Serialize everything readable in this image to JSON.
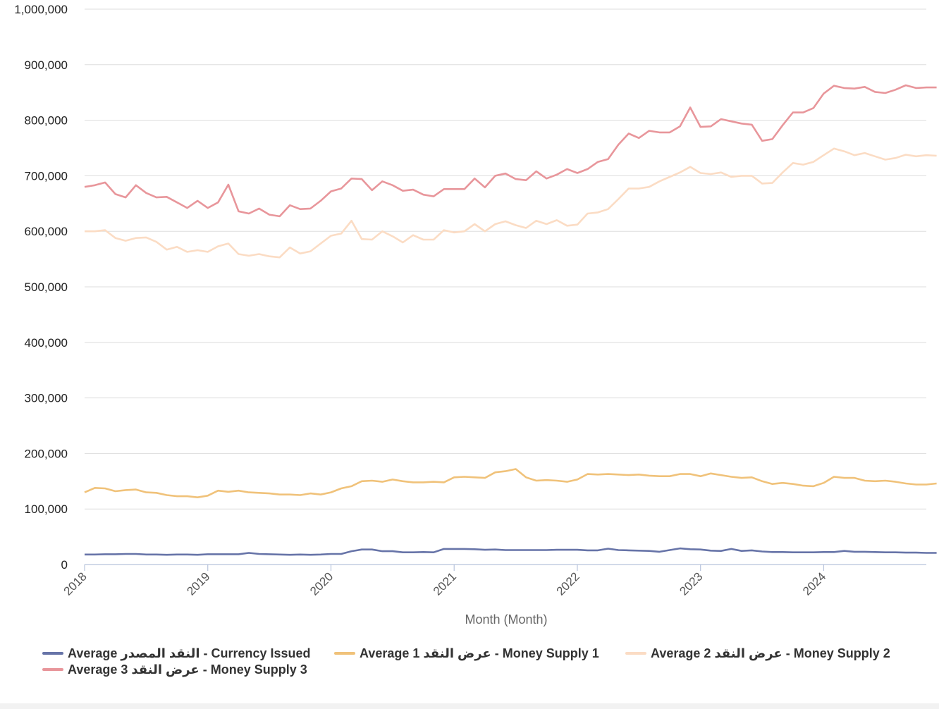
{
  "chart_data": {
    "type": "line",
    "xlabel": "Month (Month)",
    "ylabel": "",
    "ylim": [
      0,
      1000000
    ],
    "yticks": [
      0,
      100000,
      200000,
      300000,
      400000,
      500000,
      600000,
      700000,
      800000,
      900000,
      1000000
    ],
    "ytick_labels": [
      "0",
      "100,000",
      "200,000",
      "300,000",
      "400,000",
      "500,000",
      "600,000",
      "700,000",
      "800,000",
      "900,000",
      "1,000,000"
    ],
    "xlim": [
      2018,
      2024.833
    ],
    "xticks": [
      2018,
      2019,
      2020,
      2021,
      2022,
      2023,
      2024
    ],
    "xtick_labels": [
      "2018",
      "2019",
      "2020",
      "2021",
      "2022",
      "2023",
      "2024"
    ],
    "grid": true,
    "legend_position": "bottom",
    "series": [
      {
        "name": "Average النقد المصدر - Currency Issued",
        "color": "#6774a8",
        "values": [
          18000,
          18000,
          18500,
          18500,
          19000,
          19000,
          18000,
          18000,
          17500,
          18000,
          18000,
          17500,
          18500,
          18500,
          18500,
          18500,
          21000,
          19000,
          18500,
          18000,
          17500,
          18000,
          17500,
          18000,
          19000,
          19000,
          24000,
          27000,
          27000,
          24000,
          24000,
          22000,
          22000,
          22500,
          22000,
          28000,
          28000,
          28000,
          27500,
          26500,
          27000,
          26000,
          26000,
          26000,
          26000,
          26000,
          26500,
          26500,
          26500,
          25500,
          25500,
          28500,
          26000,
          25500,
          25000,
          24500,
          23000,
          26000,
          29000,
          27500,
          27000,
          25000,
          24500,
          28000,
          24500,
          25500,
          23500,
          22500,
          22500,
          22000,
          22000,
          22000,
          22500,
          22500,
          24500,
          23000,
          23000,
          22500,
          22000,
          22000,
          21500,
          21500,
          21000,
          21000
        ]
      },
      {
        "name": "Average 1 عرض النقد - Money Supply 1",
        "color": "#f0c27a",
        "values": [
          130000,
          138000,
          137000,
          132000,
          134000,
          135000,
          130000,
          129000,
          125000,
          123000,
          123000,
          121000,
          124000,
          133000,
          131000,
          133000,
          130000,
          129000,
          128000,
          126000,
          126000,
          125000,
          128000,
          126000,
          130000,
          137000,
          141000,
          150000,
          151000,
          149000,
          153000,
          150000,
          148000,
          148000,
          149000,
          148000,
          157000,
          158000,
          157000,
          156000,
          166000,
          168000,
          172000,
          157000,
          151000,
          152000,
          151000,
          149000,
          153000,
          163000,
          162000,
          163000,
          162000,
          161000,
          162000,
          160000,
          159000,
          159000,
          163000,
          163000,
          159000,
          164000,
          161000,
          158000,
          156000,
          157000,
          150000,
          145000,
          147000,
          145000,
          142000,
          141000,
          147000,
          158000,
          156000,
          156000,
          151000,
          150000,
          151000,
          149000,
          146000,
          144000,
          144000,
          146000
        ]
      },
      {
        "name": "Average 2 عرض النقد - Money Supply 2",
        "color": "#fbdcc4",
        "values": [
          600000,
          600000,
          602000,
          588000,
          583000,
          588000,
          589000,
          581000,
          567000,
          572000,
          563000,
          566000,
          563000,
          573000,
          578000,
          559000,
          556000,
          559000,
          555000,
          553000,
          571000,
          560000,
          564000,
          578000,
          592000,
          596000,
          619000,
          586000,
          585000,
          600000,
          591000,
          580000,
          593000,
          585000,
          585000,
          602000,
          598000,
          600000,
          613000,
          600000,
          613000,
          618000,
          611000,
          606000,
          619000,
          613000,
          620000,
          610000,
          612000,
          632000,
          634000,
          640000,
          658000,
          677000,
          677000,
          680000,
          690000,
          698000,
          706000,
          716000,
          705000,
          703000,
          706000,
          698000,
          700000,
          700000,
          686000,
          687000,
          706000,
          723000,
          720000,
          725000,
          737000,
          749000,
          744000,
          737000,
          741000,
          735000,
          729000,
          732000,
          738000,
          735000,
          737000,
          736000
        ]
      },
      {
        "name": "Average 3 عرض النقد - Money Supply 3",
        "color": "#e8969b",
        "values": [
          680000,
          683000,
          688000,
          667000,
          661000,
          683000,
          669000,
          661000,
          662000,
          652000,
          642000,
          655000,
          642000,
          652000,
          684000,
          636000,
          632000,
          641000,
          630000,
          627000,
          647000,
          640000,
          641000,
          655000,
          672000,
          677000,
          695000,
          694000,
          674000,
          690000,
          683000,
          673000,
          675000,
          666000,
          663000,
          676000,
          676000,
          676000,
          695000,
          679000,
          700000,
          704000,
          694000,
          692000,
          708000,
          695000,
          702000,
          712000,
          705000,
          712000,
          725000,
          730000,
          756000,
          776000,
          768000,
          781000,
          778000,
          778000,
          789000,
          823000,
          788000,
          789000,
          802000,
          798000,
          794000,
          792000,
          763000,
          766000,
          791000,
          814000,
          814000,
          822000,
          848000,
          862000,
          858000,
          857000,
          860000,
          851000,
          849000,
          855000,
          863000,
          858000,
          859000,
          859000
        ]
      }
    ]
  }
}
